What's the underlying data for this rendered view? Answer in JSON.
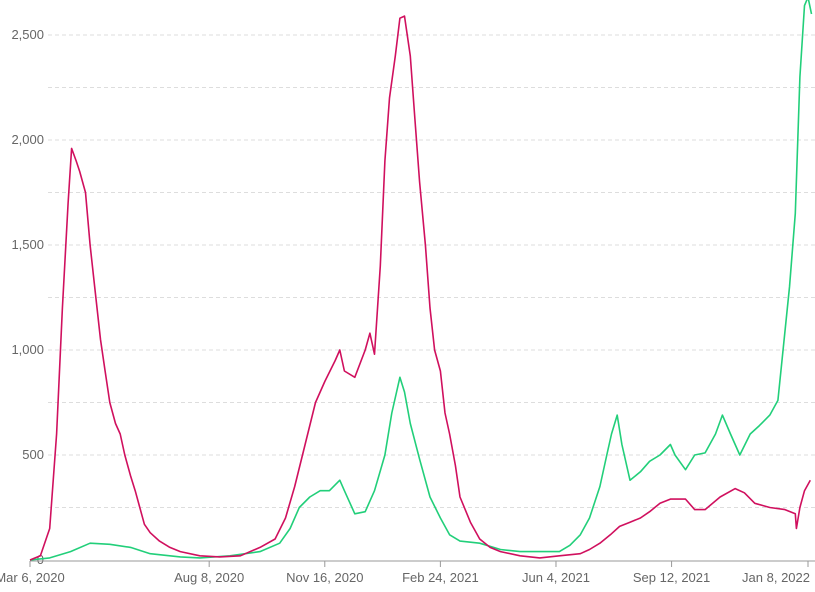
{
  "chart_data": {
    "type": "line",
    "title": "",
    "xlabel": "",
    "ylabel": "",
    "x_unit": "days since Mar 6, 2020",
    "xlim": [
      0,
      675
    ],
    "ylim": [
      0,
      2667
    ],
    "grid": true,
    "y_ticks": [
      {
        "value": 0,
        "label": "0"
      },
      {
        "value": 500,
        "label": "500"
      },
      {
        "value": 1000,
        "label": "1,000"
      },
      {
        "value": 1500,
        "label": "1,500"
      },
      {
        "value": 2000,
        "label": "2,000"
      },
      {
        "value": 2500,
        "label": "2,500"
      }
    ],
    "x_ticks": [
      {
        "value": 0,
        "label": "Mar 6, 2020"
      },
      {
        "value": 155,
        "label": "Aug 8, 2020"
      },
      {
        "value": 255,
        "label": "Nov 16, 2020"
      },
      {
        "value": 355,
        "label": "Feb 24, 2021"
      },
      {
        "value": 455,
        "label": "Jun 4, 2021"
      },
      {
        "value": 555,
        "label": "Sep 12, 2021"
      },
      {
        "value": 673,
        "label": "Jan 8, 2022"
      }
    ],
    "series": [
      {
        "name": "series-red",
        "color": "#d0105e",
        "points": [
          [
            0,
            0
          ],
          [
            9,
            20
          ],
          [
            17,
            150
          ],
          [
            23,
            600
          ],
          [
            28,
            1200
          ],
          [
            33,
            1700
          ],
          [
            36,
            1960
          ],
          [
            40,
            1900
          ],
          [
            43,
            1850
          ],
          [
            48,
            1750
          ],
          [
            52,
            1500
          ],
          [
            56,
            1300
          ],
          [
            61,
            1050
          ],
          [
            65,
            900
          ],
          [
            69,
            750
          ],
          [
            74,
            650
          ],
          [
            78,
            600
          ],
          [
            82,
            500
          ],
          [
            87,
            400
          ],
          [
            91,
            330
          ],
          [
            95,
            250
          ],
          [
            99,
            170
          ],
          [
            104,
            130
          ],
          [
            112,
            90
          ],
          [
            121,
            60
          ],
          [
            130,
            40
          ],
          [
            147,
            20
          ],
          [
            164,
            15
          ],
          [
            182,
            20
          ],
          [
            199,
            60
          ],
          [
            212,
            100
          ],
          [
            221,
            200
          ],
          [
            229,
            350
          ],
          [
            238,
            550
          ],
          [
            247,
            750
          ],
          [
            255,
            850
          ],
          [
            264,
            950
          ],
          [
            268,
            1000
          ],
          [
            272,
            900
          ],
          [
            281,
            870
          ],
          [
            290,
            1000
          ],
          [
            294,
            1080
          ],
          [
            298,
            980
          ],
          [
            303,
            1400
          ],
          [
            307,
            1900
          ],
          [
            311,
            2200
          ],
          [
            316,
            2400
          ],
          [
            320,
            2580
          ],
          [
            324,
            2590
          ],
          [
            329,
            2400
          ],
          [
            333,
            2100
          ],
          [
            337,
            1800
          ],
          [
            342,
            1500
          ],
          [
            346,
            1200
          ],
          [
            350,
            1000
          ],
          [
            355,
            900
          ],
          [
            359,
            700
          ],
          [
            363,
            600
          ],
          [
            368,
            450
          ],
          [
            372,
            300
          ],
          [
            381,
            180
          ],
          [
            389,
            100
          ],
          [
            398,
            60
          ],
          [
            407,
            40
          ],
          [
            424,
            20
          ],
          [
            441,
            10
          ],
          [
            458,
            20
          ],
          [
            476,
            30
          ],
          [
            484,
            50
          ],
          [
            493,
            80
          ],
          [
            502,
            120
          ],
          [
            510,
            160
          ],
          [
            519,
            180
          ],
          [
            528,
            200
          ],
          [
            536,
            230
          ],
          [
            545,
            270
          ],
          [
            554,
            290
          ],
          [
            567,
            290
          ],
          [
            575,
            240
          ],
          [
            584,
            240
          ],
          [
            597,
            300
          ],
          [
            610,
            340
          ],
          [
            618,
            320
          ],
          [
            627,
            270
          ],
          [
            640,
            250
          ],
          [
            653,
            240
          ],
          [
            662,
            220
          ],
          [
            663,
            150
          ],
          [
            666,
            250
          ],
          [
            670,
            330
          ],
          [
            675,
            380
          ]
        ]
      },
      {
        "name": "series-green",
        "color": "#22cf7a",
        "points": [
          [
            0,
            0
          ],
          [
            17,
            10
          ],
          [
            35,
            40
          ],
          [
            52,
            80
          ],
          [
            69,
            75
          ],
          [
            87,
            60
          ],
          [
            104,
            30
          ],
          [
            130,
            15
          ],
          [
            147,
            10
          ],
          [
            173,
            20
          ],
          [
            199,
            40
          ],
          [
            216,
            80
          ],
          [
            225,
            150
          ],
          [
            233,
            250
          ],
          [
            242,
            300
          ],
          [
            251,
            330
          ],
          [
            259,
            330
          ],
          [
            268,
            380
          ],
          [
            272,
            330
          ],
          [
            281,
            220
          ],
          [
            290,
            230
          ],
          [
            298,
            330
          ],
          [
            307,
            500
          ],
          [
            313,
            700
          ],
          [
            320,
            870
          ],
          [
            324,
            800
          ],
          [
            329,
            650
          ],
          [
            337,
            480
          ],
          [
            346,
            300
          ],
          [
            355,
            200
          ],
          [
            363,
            120
          ],
          [
            372,
            90
          ],
          [
            389,
            80
          ],
          [
            407,
            50
          ],
          [
            424,
            40
          ],
          [
            441,
            40
          ],
          [
            458,
            40
          ],
          [
            467,
            70
          ],
          [
            476,
            120
          ],
          [
            484,
            200
          ],
          [
            493,
            350
          ],
          [
            499,
            500
          ],
          [
            503,
            600
          ],
          [
            508,
            690
          ],
          [
            512,
            550
          ],
          [
            519,
            380
          ],
          [
            528,
            420
          ],
          [
            536,
            470
          ],
          [
            545,
            500
          ],
          [
            554,
            550
          ],
          [
            558,
            500
          ],
          [
            567,
            430
          ],
          [
            575,
            500
          ],
          [
            584,
            510
          ],
          [
            593,
            600
          ],
          [
            599,
            690
          ],
          [
            606,
            600
          ],
          [
            614,
            500
          ],
          [
            623,
            600
          ],
          [
            631,
            640
          ],
          [
            640,
            690
          ],
          [
            647,
            760
          ],
          [
            657,
            1300
          ],
          [
            662,
            1650
          ],
          [
            666,
            2300
          ],
          [
            670,
            2640
          ],
          [
            673,
            2680
          ],
          [
            676,
            2600
          ]
        ]
      }
    ]
  }
}
